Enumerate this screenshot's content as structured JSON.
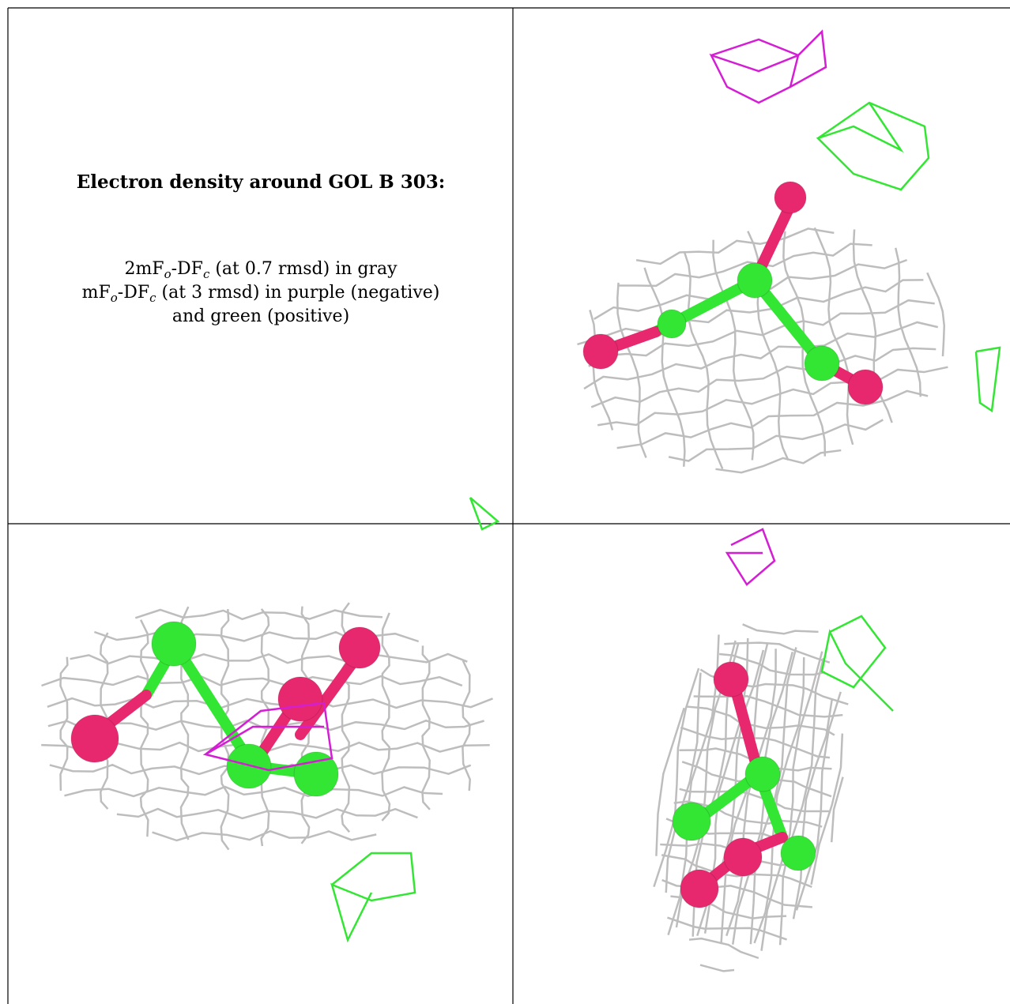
{
  "title": "Electron density around GOL B 303:",
  "caption": [
    [
      {
        "text": "2mF"
      },
      {
        "sub": "o"
      },
      {
        "text": "-DF"
      },
      {
        "sub": "c"
      },
      {
        "text": " (at 0.7 rmsd) in gray"
      }
    ],
    [
      {
        "text": "mF"
      },
      {
        "sub": "o"
      },
      {
        "text": "-DF"
      },
      {
        "sub": "c"
      },
      {
        "text": " (at 3 rmsd) in purple (negative)"
      }
    ],
    [
      {
        "text": "and green (positive)"
      }
    ]
  ]
}
